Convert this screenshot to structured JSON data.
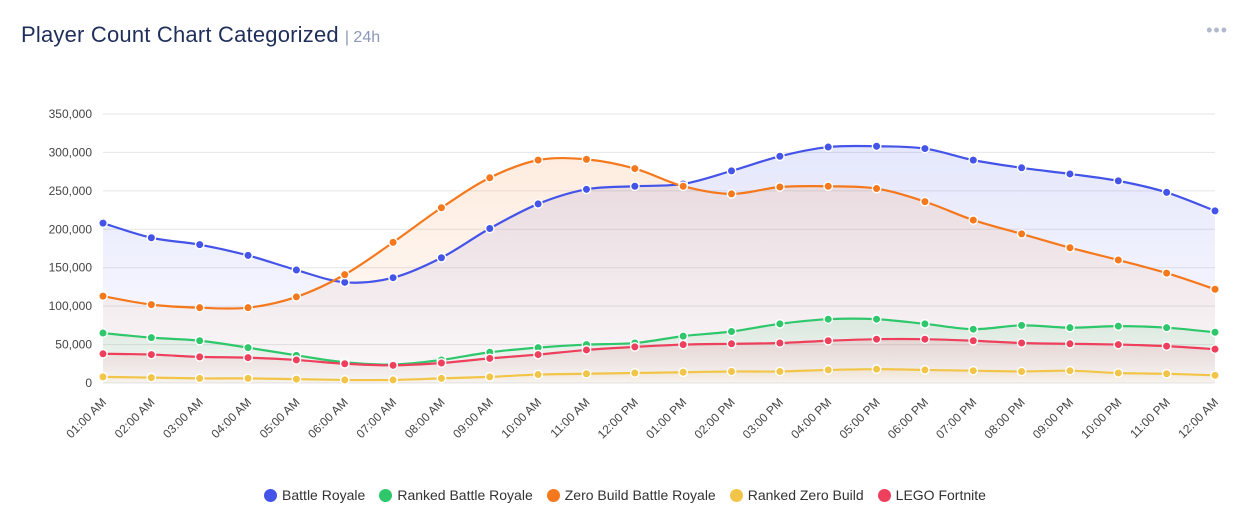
{
  "header": {
    "title": "Player Count Chart Categorized",
    "range": "| 24h",
    "menu_icon": "•••"
  },
  "chart_data": {
    "type": "area",
    "title": "Player Count Chart Categorized",
    "xlabel": "",
    "ylabel": "",
    "ylim": [
      0,
      350000
    ],
    "yticks": [
      0,
      50000,
      100000,
      150000,
      200000,
      250000,
      300000,
      350000
    ],
    "ytick_labels": [
      "0",
      "50,000",
      "100,000",
      "150,000",
      "200,000",
      "250,000",
      "300,000",
      "350,000"
    ],
    "legend_position": "bottom",
    "categories": [
      "01:00 AM",
      "02:00 AM",
      "03:00 AM",
      "04:00 AM",
      "05:00 AM",
      "06:00 AM",
      "07:00 AM",
      "08:00 AM",
      "09:00 AM",
      "10:00 AM",
      "11:00 AM",
      "12:00 PM",
      "01:00 PM",
      "02:00 PM",
      "03:00 PM",
      "04:00 PM",
      "05:00 PM",
      "06:00 PM",
      "07:00 PM",
      "08:00 PM",
      "09:00 PM",
      "10:00 PM",
      "11:00 PM",
      "12:00 AM"
    ],
    "series": [
      {
        "name": "Battle Royale",
        "color": "#4453e8",
        "values": [
          208000,
          189000,
          180000,
          166000,
          147000,
          131000,
          137000,
          163000,
          201000,
          233000,
          252000,
          256000,
          259000,
          276000,
          295000,
          307000,
          308000,
          305000,
          290000,
          280000,
          272000,
          263000,
          248000,
          224000
        ]
      },
      {
        "name": "Ranked Battle Royale",
        "color": "#2fc76b",
        "values": [
          65000,
          59000,
          55000,
          46000,
          36000,
          27000,
          24000,
          30000,
          40000,
          46000,
          50000,
          52000,
          61000,
          67000,
          77000,
          83000,
          83000,
          77000,
          70000,
          75000,
          72000,
          74000,
          72000,
          66000
        ]
      },
      {
        "name": "Zero Build Battle Royale",
        "color": "#f5781c",
        "values": [
          113000,
          102000,
          98000,
          98000,
          112000,
          141000,
          183000,
          228000,
          267000,
          290000,
          291000,
          279000,
          256000,
          246000,
          255000,
          256000,
          253000,
          236000,
          212000,
          194000,
          176000,
          160000,
          143000,
          122000
        ]
      },
      {
        "name": "Ranked Zero Build",
        "color": "#f2c548",
        "values": [
          8000,
          7000,
          6000,
          6000,
          5000,
          4000,
          4000,
          6000,
          8000,
          11000,
          12000,
          13000,
          14000,
          15000,
          15000,
          17000,
          18000,
          17000,
          16000,
          15000,
          16000,
          13000,
          12000,
          10000
        ]
      },
      {
        "name": "LEGO Fortnite",
        "color": "#ee3f5c",
        "values": [
          38000,
          37000,
          34000,
          33000,
          30000,
          25000,
          23000,
          26000,
          32000,
          37000,
          43000,
          47000,
          50000,
          51000,
          52000,
          55000,
          57000,
          57000,
          55000,
          52000,
          51000,
          50000,
          48000,
          44000
        ]
      }
    ]
  }
}
